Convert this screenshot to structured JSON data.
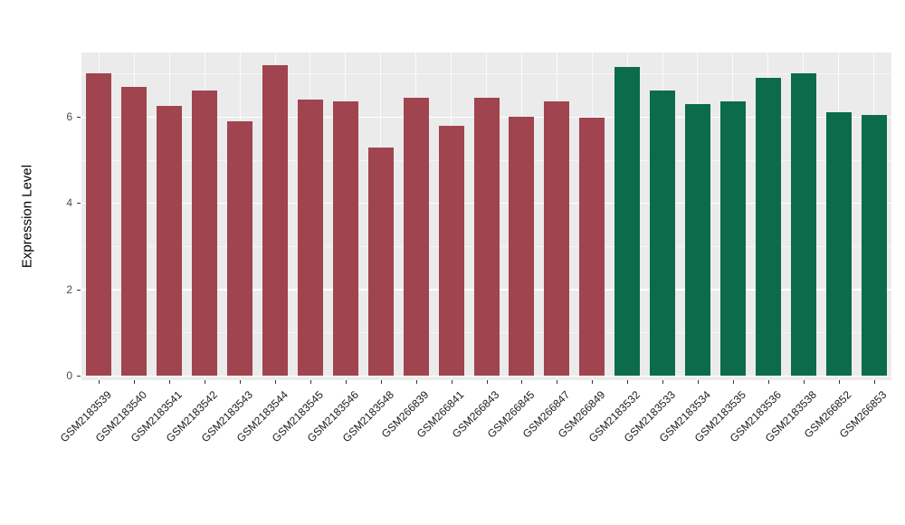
{
  "chart_data": {
    "type": "bar",
    "title": "",
    "xlabel": "",
    "ylabel": "Expression Level",
    "ylim": [
      0,
      7.49
    ],
    "yticks": [
      0,
      2,
      4,
      6
    ],
    "minor_gridlines": [
      1,
      3,
      5,
      7
    ],
    "grid": "on",
    "legend_position": "none",
    "panel_background": "#EBEBEB",
    "gridline_color": "#FFFFFF",
    "categories": [
      "GSM2183539",
      "GSM2183540",
      "GSM2183541",
      "GSM2183542",
      "GSM2183543",
      "GSM2183544",
      "GSM2183545",
      "GSM2183546",
      "GSM2183548",
      "GSM266839",
      "GSM266841",
      "GSM266843",
      "GSM266845",
      "GSM266847",
      "GSM266849",
      "GSM2183532",
      "GSM2183533",
      "GSM2183534",
      "GSM2183535",
      "GSM2183536",
      "GSM2183538",
      "GSM266852",
      "GSM266853"
    ],
    "values": [
      7.0,
      6.7,
      6.25,
      6.6,
      5.9,
      7.2,
      6.4,
      6.35,
      5.28,
      6.45,
      5.8,
      6.45,
      6.0,
      6.35,
      5.97,
      7.15,
      6.6,
      6.3,
      6.35,
      6.9,
      7.0,
      6.1,
      6.05
    ],
    "bar_colors": [
      "#A0444F",
      "#A0444F",
      "#A0444F",
      "#A0444F",
      "#A0444F",
      "#A0444F",
      "#A0444F",
      "#A0444F",
      "#A0444F",
      "#A0444F",
      "#A0444F",
      "#A0444F",
      "#A0444F",
      "#A0444F",
      "#A0444F",
      "#0B6B4B",
      "#0B6B4B",
      "#0B6B4B",
      "#0B6B4B",
      "#0B6B4B",
      "#0B6B4B",
      "#0B6B4B",
      "#0B6B4B"
    ],
    "group_colors": {
      "left_group": "#A0444F",
      "right_group": "#0B6B4B"
    }
  }
}
